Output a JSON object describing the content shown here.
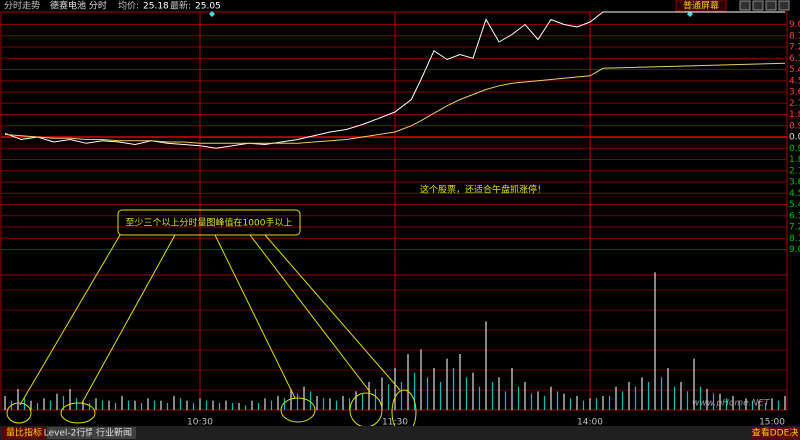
{
  "chart_data": {
    "type": "line",
    "title": "分时走势",
    "stock": "德赛电池 分时",
    "avg_label": "均价:",
    "avg_price": 25.18,
    "last_label": "最新:",
    "last_price": 25.05,
    "screen_button": "普通屏幕",
    "xlim": [
      0,
      240
    ],
    "xticks": [
      {
        "value": 60,
        "label": "10:30"
      },
      {
        "value": 120,
        "label": "11:30"
      },
      {
        "value": 180,
        "label": "14:00"
      },
      {
        "value": 240,
        "label": "15:00"
      }
    ],
    "ylim": [
      -10,
      10
    ],
    "yticks": [
      {
        "value": 9,
        "label": "9.0"
      },
      8.1,
      7.2,
      6.3,
      5.4,
      4.5,
      3.6,
      2.7,
      1.8,
      0.9,
      {
        "value": 0,
        "label": "0.00"
      },
      {
        "value": -0.9,
        "label": "0.9"
      },
      {
        "value": -1.8,
        "label": "1.8"
      },
      {
        "value": -2.7,
        "label": "2.7"
      },
      {
        "value": -3.6,
        "label": "3.6"
      },
      {
        "value": -4.5,
        "label": "4.5"
      },
      {
        "value": -5.4,
        "label": "5.4"
      },
      {
        "value": -6.3,
        "label": "6.3"
      },
      {
        "value": -7.2,
        "label": "7.2"
      },
      {
        "value": -8.1,
        "label": "8.1"
      },
      {
        "value": -9,
        "label": "9.0"
      }
    ],
    "grid": true,
    "x": [
      0,
      5,
      10,
      15,
      20,
      25,
      30,
      35,
      40,
      45,
      50,
      55,
      60,
      65,
      70,
      75,
      80,
      85,
      90,
      95,
      100,
      105,
      110,
      115,
      120,
      125,
      128,
      132,
      136,
      140,
      144,
      148,
      152,
      156,
      160,
      164,
      168,
      172,
      176,
      180,
      184,
      240
    ],
    "series": [
      {
        "color": "#ffffff",
        "values": [
          0.3,
          -0.2,
          0.0,
          -0.4,
          -0.2,
          -0.5,
          -0.3,
          -0.4,
          -0.6,
          -0.3,
          -0.5,
          -0.6,
          -0.7,
          -0.9,
          -0.7,
          -0.5,
          -0.6,
          -0.4,
          -0.2,
          0.1,
          0.4,
          0.6,
          1.0,
          1.5,
          2.0,
          3.0,
          4.6,
          6.9,
          6.2,
          6.6,
          6.3,
          9.4,
          7.6,
          8.2,
          9.0,
          7.8,
          9.4,
          9.0,
          8.8,
          9.2,
          10.0,
          10.0
        ]
      },
      {
        "color": "#e8d060",
        "values": [
          0.2,
          0.1,
          0.0,
          -0.1,
          -0.1,
          -0.2,
          -0.2,
          -0.3,
          -0.3,
          -0.3,
          -0.4,
          -0.4,
          -0.5,
          -0.5,
          -0.5,
          -0.5,
          -0.5,
          -0.5,
          -0.5,
          -0.4,
          -0.3,
          -0.2,
          0.0,
          0.2,
          0.4,
          0.9,
          1.3,
          1.9,
          2.5,
          3.0,
          3.4,
          3.8,
          4.1,
          4.3,
          4.4,
          4.5,
          4.6,
          4.7,
          4.8,
          4.9,
          5.5,
          5.9
        ]
      }
    ],
    "volume_ylim": [
      0,
      3000
    ],
    "volume": [
      {
        "color": "#e0e0e0",
        "x": [
          0,
          4,
          8,
          12,
          16,
          20,
          24,
          28,
          32,
          36,
          40,
          44,
          48,
          52,
          56,
          60,
          64,
          68,
          72,
          76,
          80,
          84,
          88,
          92,
          96,
          100,
          104,
          108,
          112,
          116,
          120,
          124,
          128,
          132,
          136,
          140,
          144,
          148,
          152,
          156,
          160,
          164,
          168,
          172,
          176,
          180,
          184,
          188,
          192,
          196,
          200,
          204,
          208,
          212,
          216,
          220,
          224,
          228,
          232,
          236,
          240
        ],
        "values": [
          300,
          450,
          200,
          250,
          350,
          450,
          200,
          250,
          200,
          300,
          200,
          250,
          200,
          300,
          200,
          250,
          200,
          200,
          150,
          200,
          250,
          300,
          450,
          500,
          300,
          250,
          300,
          400,
          600,
          700,
          900,
          1200,
          1300,
          900,
          1100,
          1200,
          800,
          1900,
          700,
          900,
          600,
          400,
          500,
          350,
          300,
          250,
          300,
          500,
          600,
          700,
          2950,
          900,
          600,
          1100,
          450,
          350,
          300,
          250,
          200,
          250,
          300
        ]
      },
      {
        "color": "#00c0c0",
        "x": [
          2,
          6,
          10,
          14,
          18,
          22,
          26,
          30,
          34,
          38,
          42,
          46,
          50,
          54,
          58,
          62,
          66,
          70,
          74,
          78,
          82,
          86,
          90,
          94,
          98,
          102,
          106,
          110,
          114,
          118,
          122,
          126,
          130,
          134,
          138,
          142,
          146,
          150,
          154,
          158,
          162,
          166,
          170,
          174,
          178,
          182,
          186,
          190,
          194,
          198,
          202,
          206,
          210,
          214,
          218,
          222,
          226,
          230,
          234,
          238
        ],
        "values": [
          200,
          250,
          150,
          200,
          300,
          250,
          150,
          200,
          150,
          200,
          150,
          200,
          150,
          250,
          150,
          200,
          150,
          150,
          100,
          150,
          200,
          250,
          350,
          400,
          250,
          200,
          250,
          350,
          450,
          550,
          600,
          800,
          700,
          600,
          900,
          700,
          500,
          600,
          400,
          500,
          350,
          300,
          400,
          250,
          200,
          250,
          300,
          400,
          500,
          600,
          700,
          500,
          400,
          500,
          350,
          250,
          200,
          200,
          150,
          200
        ]
      }
    ],
    "annotations": [
      "至少三个以上分时量图峰值在1000手以上",
      "这个股票，还适合午盘抓涨停！"
    ],
    "watermark": "www.pHome.NET",
    "tabs": [
      "量比指标",
      "Level-2行情",
      "行业新闻"
    ],
    "dde_button": "查看DDE决"
  }
}
